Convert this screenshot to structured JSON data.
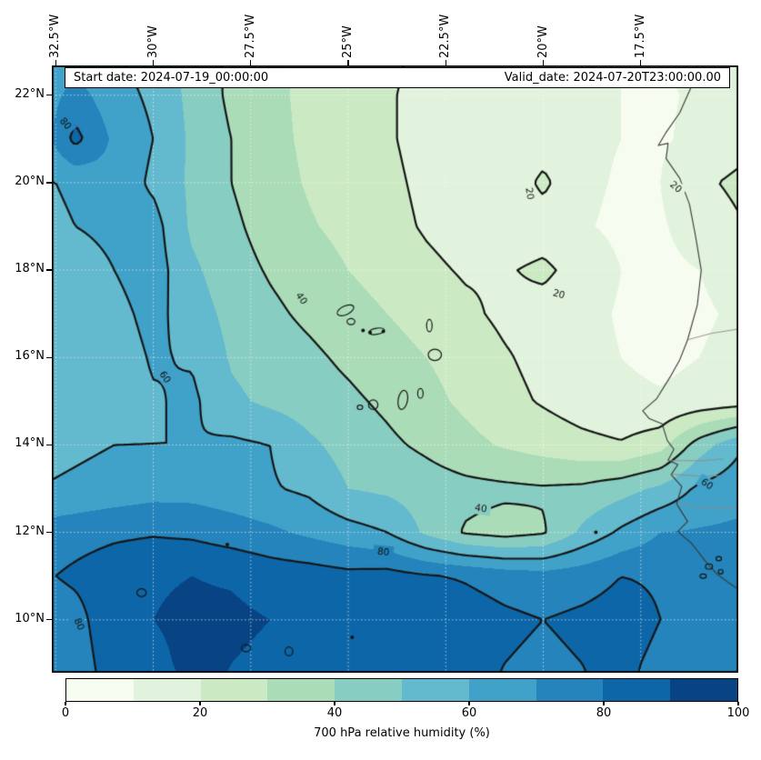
{
  "header": {
    "start_date": "Start date: 2024-07-19_00:00:00",
    "valid_date": "Valid_date: 2024-07-20T23:00:00.00"
  },
  "axes": {
    "x_ticks": [
      {
        "label": "32.5°W",
        "lon": -32.5
      },
      {
        "label": "30°W",
        "lon": -30
      },
      {
        "label": "27.5°W",
        "lon": -27.5
      },
      {
        "label": "25°W",
        "lon": -25
      },
      {
        "label": "22.5°W",
        "lon": -22.5
      },
      {
        "label": "20°W",
        "lon": -20
      },
      {
        "label": "17.5°W",
        "lon": -17.5
      }
    ],
    "y_ticks": [
      {
        "label": "22°N",
        "lat": 22
      },
      {
        "label": "20°N",
        "lat": 20
      },
      {
        "label": "18°N",
        "lat": 18
      },
      {
        "label": "16°N",
        "lat": 16
      },
      {
        "label": "14°N",
        "lat": 14
      },
      {
        "label": "12°N",
        "lat": 12
      },
      {
        "label": "10°N",
        "lat": 10
      }
    ]
  },
  "colorbar": {
    "label": "700 hPa relative humidity (%)",
    "tick_labels": [
      "0",
      "20",
      "40",
      "60",
      "80",
      "100"
    ],
    "colors": [
      "#f7fcf0",
      "#e1f3dc",
      "#cbeac4",
      "#aadcb8",
      "#88cdc1",
      "#63b9cd",
      "#40a1c9",
      "#2484bb",
      "#0c66a8",
      "#084484"
    ]
  },
  "chart_data": {
    "type": "heatmap",
    "title": "700 hPa relative humidity (%)",
    "units": "%",
    "fill_levels": [
      0,
      10,
      20,
      30,
      40,
      50,
      60,
      70,
      80,
      90,
      100
    ],
    "contour_levels": [
      20,
      40,
      60,
      80
    ],
    "lon_range": [
      -32.6,
      -15.0
    ],
    "lat_range": [
      8.79,
      22.68
    ],
    "grid": {
      "lons": [
        -33,
        -32,
        -31,
        -30,
        -29,
        -28,
        -27,
        -26,
        -25,
        -24,
        -23,
        -22,
        -21,
        -20,
        -19,
        -18,
        -17,
        -16,
        -15
      ],
      "lats": [
        23,
        22,
        21,
        20,
        19,
        18,
        17,
        16,
        15,
        14,
        13,
        12,
        11,
        10,
        9,
        8
      ],
      "values_pct": [
        [
          62,
          64,
          60,
          56,
          46,
          38,
          32,
          28,
          25,
          22,
          18,
          14,
          12,
          12,
          11,
          10,
          10,
          12,
          14
        ],
        [
          62,
          74,
          64,
          58,
          47,
          38,
          32,
          28,
          24,
          21,
          17,
          13,
          12,
          13,
          11,
          10,
          9,
          11,
          14
        ],
        [
          62,
          83,
          68,
          60,
          48,
          40,
          33,
          28,
          24,
          21,
          17,
          13,
          13,
          15,
          12,
          10,
          9,
          12,
          16
        ],
        [
          58,
          62,
          67,
          58,
          48,
          40,
          34,
          29,
          25,
          22,
          18,
          14,
          13,
          22,
          12,
          9,
          10,
          18,
          22
        ],
        [
          56,
          60,
          62,
          64,
          48,
          42,
          36,
          31,
          27,
          23,
          19,
          16,
          14,
          15,
          11,
          8,
          9,
          14,
          19
        ],
        [
          52,
          56,
          60,
          65,
          52,
          44,
          39,
          35,
          30,
          26,
          22,
          19,
          19,
          22,
          16,
          10,
          8,
          10,
          13
        ],
        [
          50,
          54,
          57,
          63,
          55,
          47,
          42,
          38,
          34,
          30,
          26,
          22,
          18,
          16,
          13,
          9,
          7,
          9,
          11
        ],
        [
          50,
          52,
          55,
          61,
          59,
          49,
          45,
          42,
          38,
          34,
          30,
          26,
          21,
          17,
          13,
          10,
          8,
          10,
          12
        ],
        [
          52,
          54,
          56,
          59,
          62,
          52,
          48,
          45,
          42,
          38,
          33,
          28,
          23,
          19,
          15,
          12,
          11,
          13,
          15
        ],
        [
          56,
          58,
          60,
          60,
          60,
          62,
          60,
          52,
          46,
          42,
          38,
          33,
          29,
          26,
          23,
          21,
          26,
          45,
          58
        ],
        [
          60,
          62,
          64,
          66,
          66,
          64,
          61,
          58,
          50,
          48,
          45,
          43,
          42,
          41,
          42,
          46,
          52,
          62,
          66
        ],
        [
          74,
          76,
          78,
          79,
          78,
          75,
          72,
          68,
          64,
          60,
          48,
          39,
          36,
          39,
          52,
          62,
          70,
          71,
          72
        ],
        [
          78,
          82,
          86,
          89,
          90,
          89,
          86,
          85,
          83,
          84,
          81,
          79,
          76,
          74,
          76,
          80,
          79,
          76,
          74
        ],
        [
          72,
          76,
          88,
          90,
          92,
          92,
          90,
          88,
          86,
          85,
          87,
          85,
          82,
          80,
          82,
          84,
          80,
          78,
          76
        ],
        [
          72,
          74,
          86,
          88,
          92,
          90,
          88,
          86,
          83,
          81,
          84,
          82,
          80,
          78,
          80,
          82,
          78,
          76,
          74
        ],
        [
          70,
          72,
          84,
          86,
          90,
          89,
          87,
          85,
          82,
          80,
          83,
          81,
          79,
          77,
          79,
          81,
          77,
          75,
          73
        ]
      ]
    },
    "contour_labels": [
      {
        "text": "80",
        "lon": -32.25,
        "lat": 21.35,
        "rot": 50
      },
      {
        "text": "20",
        "lon": -20.35,
        "lat": 19.75,
        "rot": 80
      },
      {
        "text": "20",
        "lon": -16.6,
        "lat": 19.9,
        "rot": 40
      },
      {
        "text": "20",
        "lon": -19.6,
        "lat": 17.45,
        "rot": 15
      },
      {
        "text": "40",
        "lon": -26.2,
        "lat": 17.35,
        "rot": 55
      },
      {
        "text": "60",
        "lon": -29.7,
        "lat": 15.55,
        "rot": 55
      },
      {
        "text": "40",
        "lon": -21.6,
        "lat": 12.55,
        "rot": 8
      },
      {
        "text": "80",
        "lon": -24.1,
        "lat": 11.55,
        "rot": 6
      },
      {
        "text": "60",
        "lon": -15.8,
        "lat": 13.1,
        "rot": 35
      },
      {
        "text": "80",
        "lon": -31.9,
        "lat": 9.9,
        "rot": 65
      }
    ],
    "coastline": [
      [
        -16.05,
        22.7
      ],
      [
        -16.2,
        22.2
      ],
      [
        -16.5,
        21.6
      ],
      [
        -16.85,
        21.15
      ],
      [
        -17.05,
        20.85
      ],
      [
        -16.8,
        20.9
      ],
      [
        -16.85,
        20.55
      ],
      [
        -16.5,
        20.1
      ],
      [
        -16.25,
        19.5
      ],
      [
        -16.1,
        18.8
      ],
      [
        -15.95,
        18.0
      ],
      [
        -16.05,
        17.2
      ],
      [
        -16.3,
        16.4
      ],
      [
        -16.5,
        15.95
      ],
      [
        -16.75,
        15.55
      ],
      [
        -17.1,
        15.05
      ],
      [
        -17.45,
        14.78
      ],
      [
        -17.28,
        14.6
      ],
      [
        -16.95,
        14.48
      ],
      [
        -16.82,
        14.1
      ],
      [
        -16.65,
        13.9
      ],
      [
        -16.8,
        13.65
      ],
      [
        -16.55,
        13.55
      ],
      [
        -16.72,
        13.32
      ],
      [
        -16.45,
        13.05
      ],
      [
        -16.58,
        12.65
      ],
      [
        -16.3,
        12.25
      ],
      [
        -16.55,
        12.02
      ],
      [
        -16.2,
        11.75
      ],
      [
        -15.85,
        11.35
      ],
      [
        -15.55,
        11.05
      ],
      [
        -15.25,
        10.85
      ],
      [
        -15.0,
        10.7
      ]
    ],
    "borders": [
      [
        [
          -16.32,
          16.4
        ],
        [
          -15.7,
          16.55
        ],
        [
          -15.0,
          16.65
        ]
      ],
      [
        [
          -16.78,
          13.64
        ],
        [
          -15.9,
          13.64
        ],
        [
          -15.4,
          13.68
        ]
      ],
      [
        [
          -16.7,
          13.33
        ],
        [
          -15.9,
          13.28
        ],
        [
          -15.4,
          13.3
        ]
      ],
      [
        [
          -16.55,
          12.65
        ],
        [
          -15.7,
          12.55
        ],
        [
          -15.0,
          12.55
        ]
      ]
    ],
    "islands": [
      [
        -25.07,
        17.08,
        0.23,
        0.1,
        -25
      ],
      [
        -24.93,
        16.82,
        0.1,
        0.07,
        0
      ],
      [
        -24.27,
        16.6,
        0.2,
        0.07,
        -10
      ],
      [
        -22.92,
        16.73,
        0.07,
        0.14,
        0
      ],
      [
        -22.78,
        16.06,
        0.17,
        0.13,
        0
      ],
      [
        -23.15,
        15.18,
        0.07,
        0.11,
        0
      ],
      [
        -23.6,
        15.03,
        0.12,
        0.22,
        10
      ],
      [
        -24.36,
        14.92,
        0.12,
        0.11,
        0
      ],
      [
        -24.7,
        14.86,
        0.07,
        0.05,
        0
      ],
      [
        -30.3,
        10.62,
        0.12,
        0.09,
        0
      ],
      [
        -15.75,
        11.22,
        0.09,
        0.06,
        0
      ],
      [
        -15.5,
        11.4,
        0.07,
        0.05,
        0
      ],
      [
        -15.45,
        11.1,
        0.06,
        0.05,
        0
      ],
      [
        -15.9,
        11.0,
        0.08,
        0.05,
        0
      ],
      [
        -27.62,
        9.35,
        0.12,
        0.08,
        0
      ],
      [
        -26.52,
        9.28,
        0.1,
        0.1,
        0
      ]
    ],
    "islet_dots": [
      [
        -24.62,
        16.62
      ],
      [
        -24.44,
        16.57
      ],
      [
        -24.1,
        16.6
      ],
      [
        -18.65,
        12.0
      ],
      [
        -28.1,
        11.72
      ],
      [
        -24.9,
        9.6
      ]
    ]
  }
}
